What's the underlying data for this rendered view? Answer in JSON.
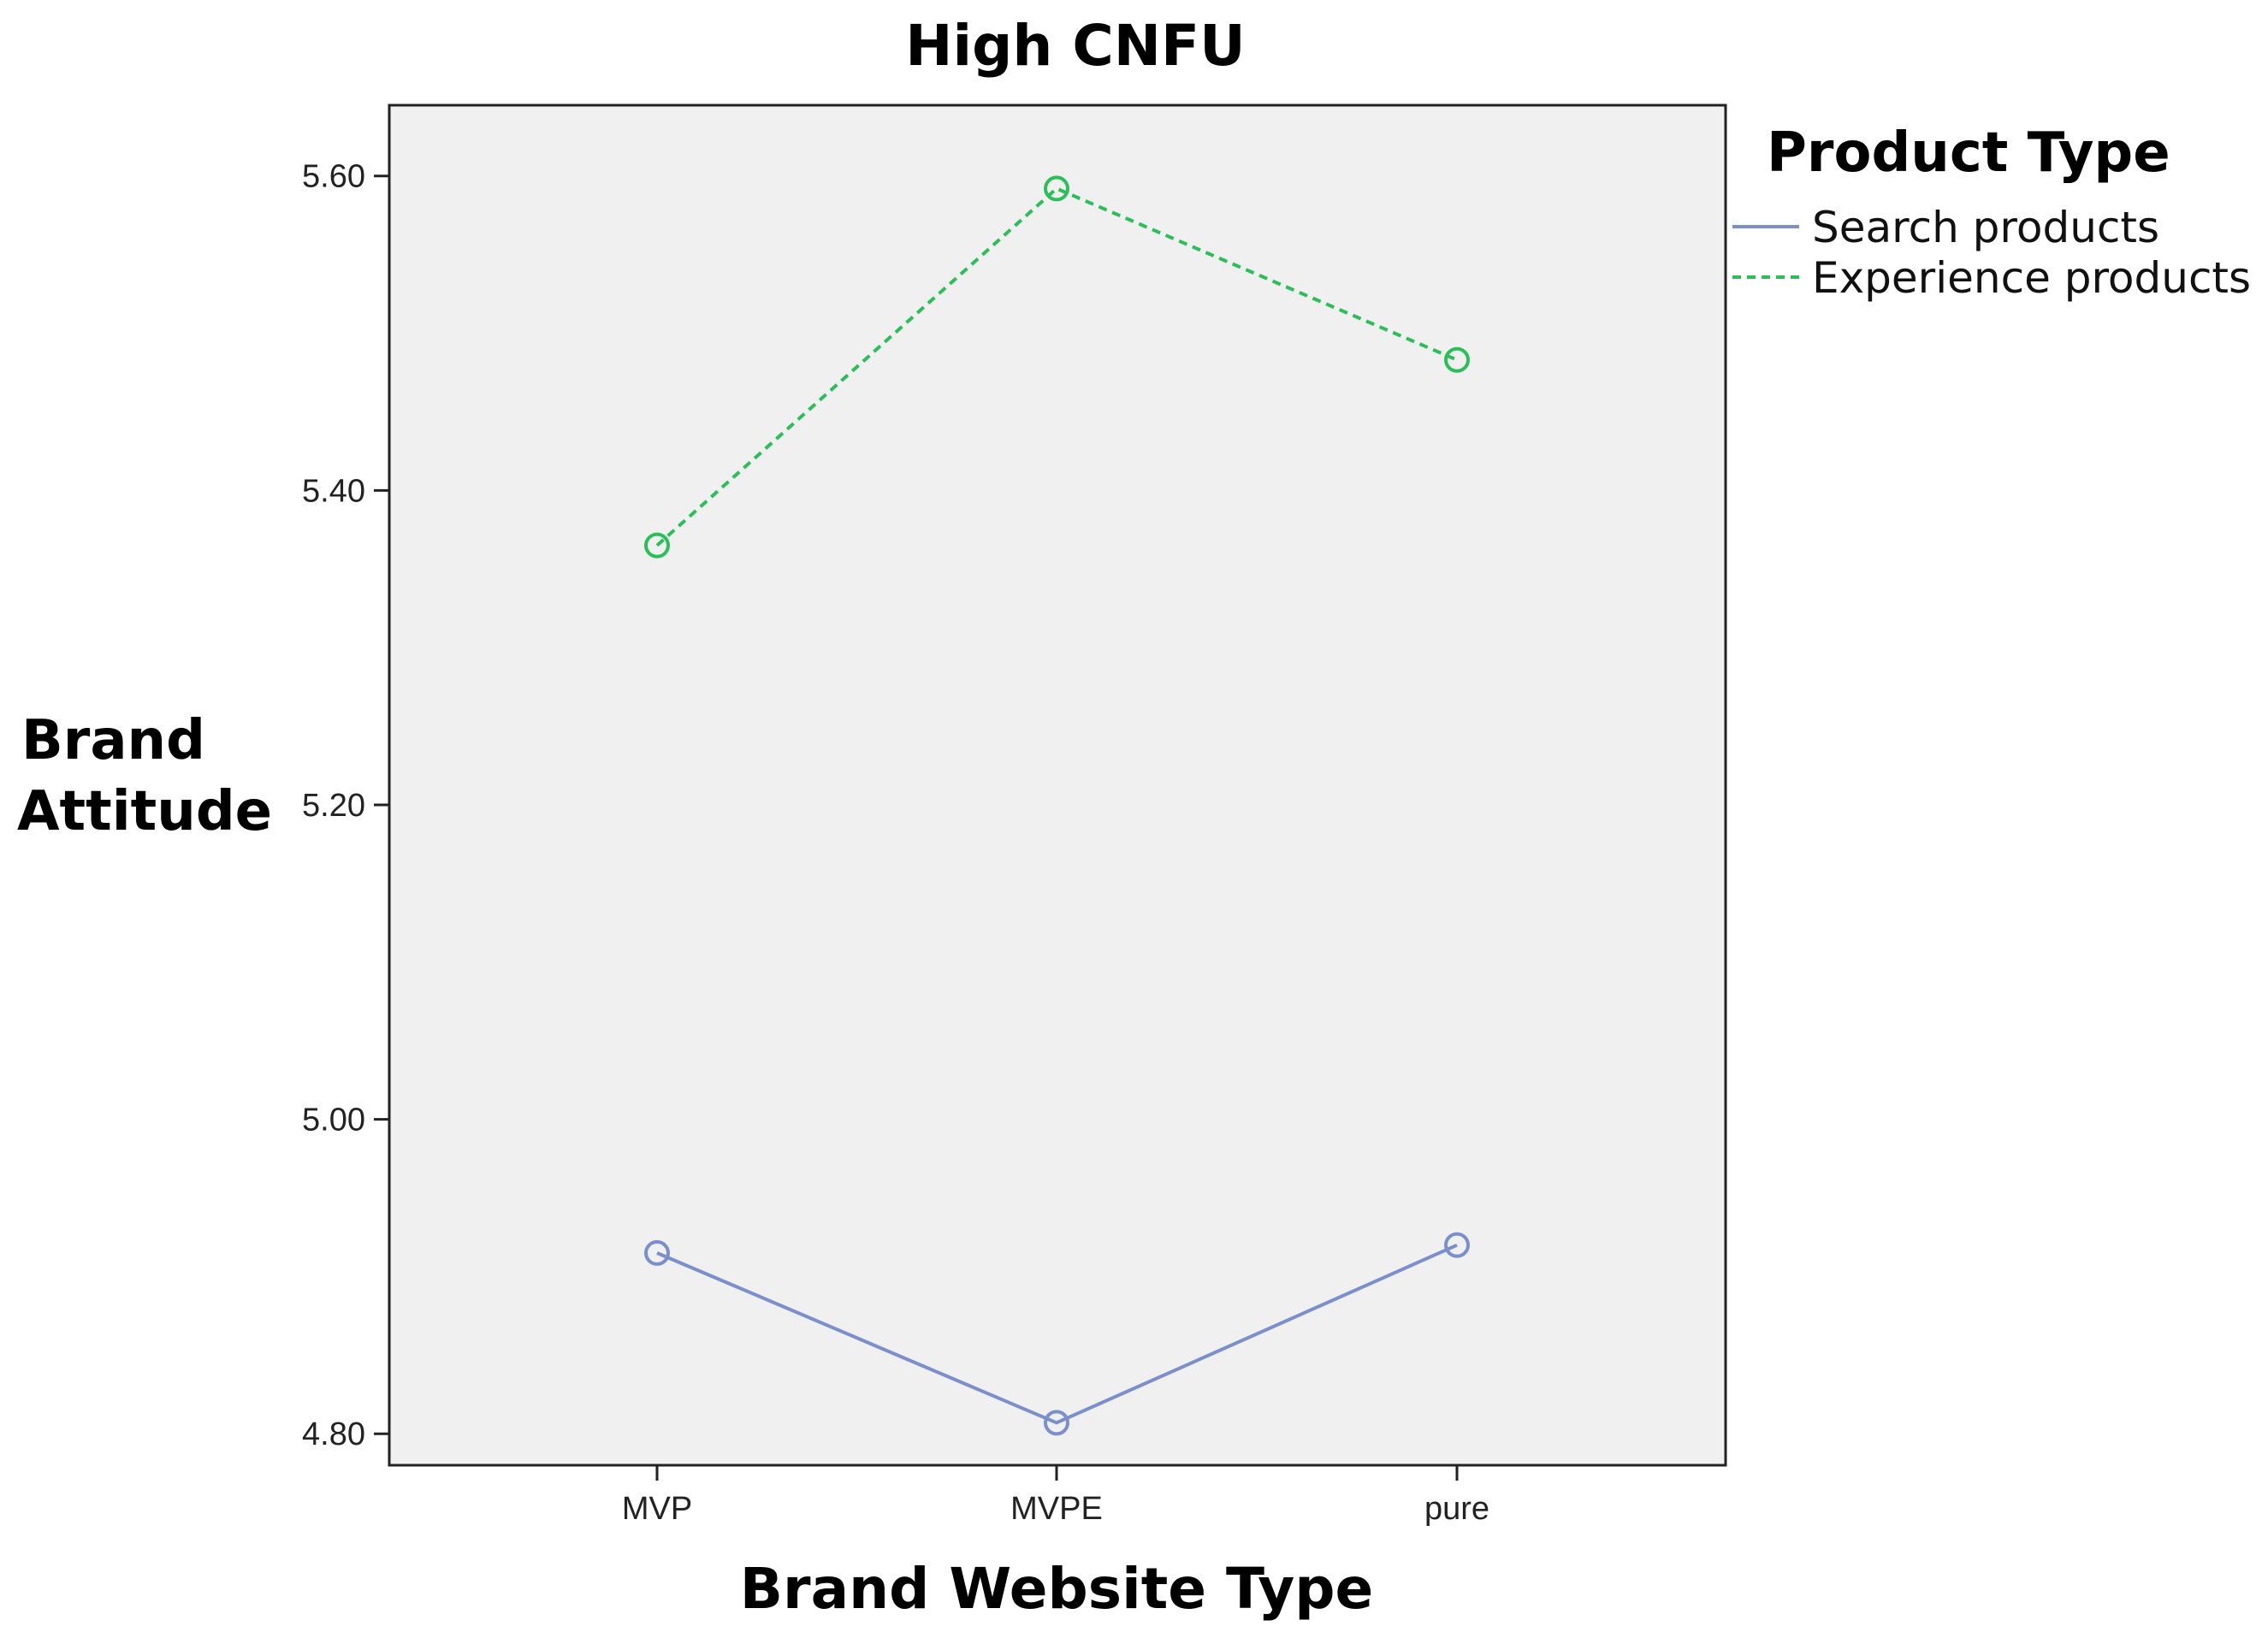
{
  "chart_data": {
    "type": "line",
    "title": "High CNFU",
    "xlabel": "Brand Website Type",
    "ylabel_lines": [
      "Brand",
      "Attitude"
    ],
    "categories": [
      "MVP",
      "MVPE",
      "pure"
    ],
    "ylim": [
      4.78,
      5.645
    ],
    "yticks": [
      "4.80",
      "5.00",
      "5.20",
      "5.40",
      "5.60"
    ],
    "ytick_values": [
      4.8,
      5.0,
      5.2,
      5.4,
      5.6
    ],
    "grid": false,
    "plot_background": "#f0f0f0",
    "legend": {
      "title": "Product Type",
      "placement": "right"
    },
    "series": [
      {
        "name": "Search products",
        "values": [
          4.915,
          4.807,
          4.92
        ],
        "color": "#7b8fcc",
        "dash": "solid",
        "marker": "circle-open"
      },
      {
        "name": "Experience products",
        "values": [
          5.365,
          5.592,
          5.483
        ],
        "color": "#2bbf5a",
        "dash": "dashed",
        "marker": "circle-open"
      }
    ]
  }
}
